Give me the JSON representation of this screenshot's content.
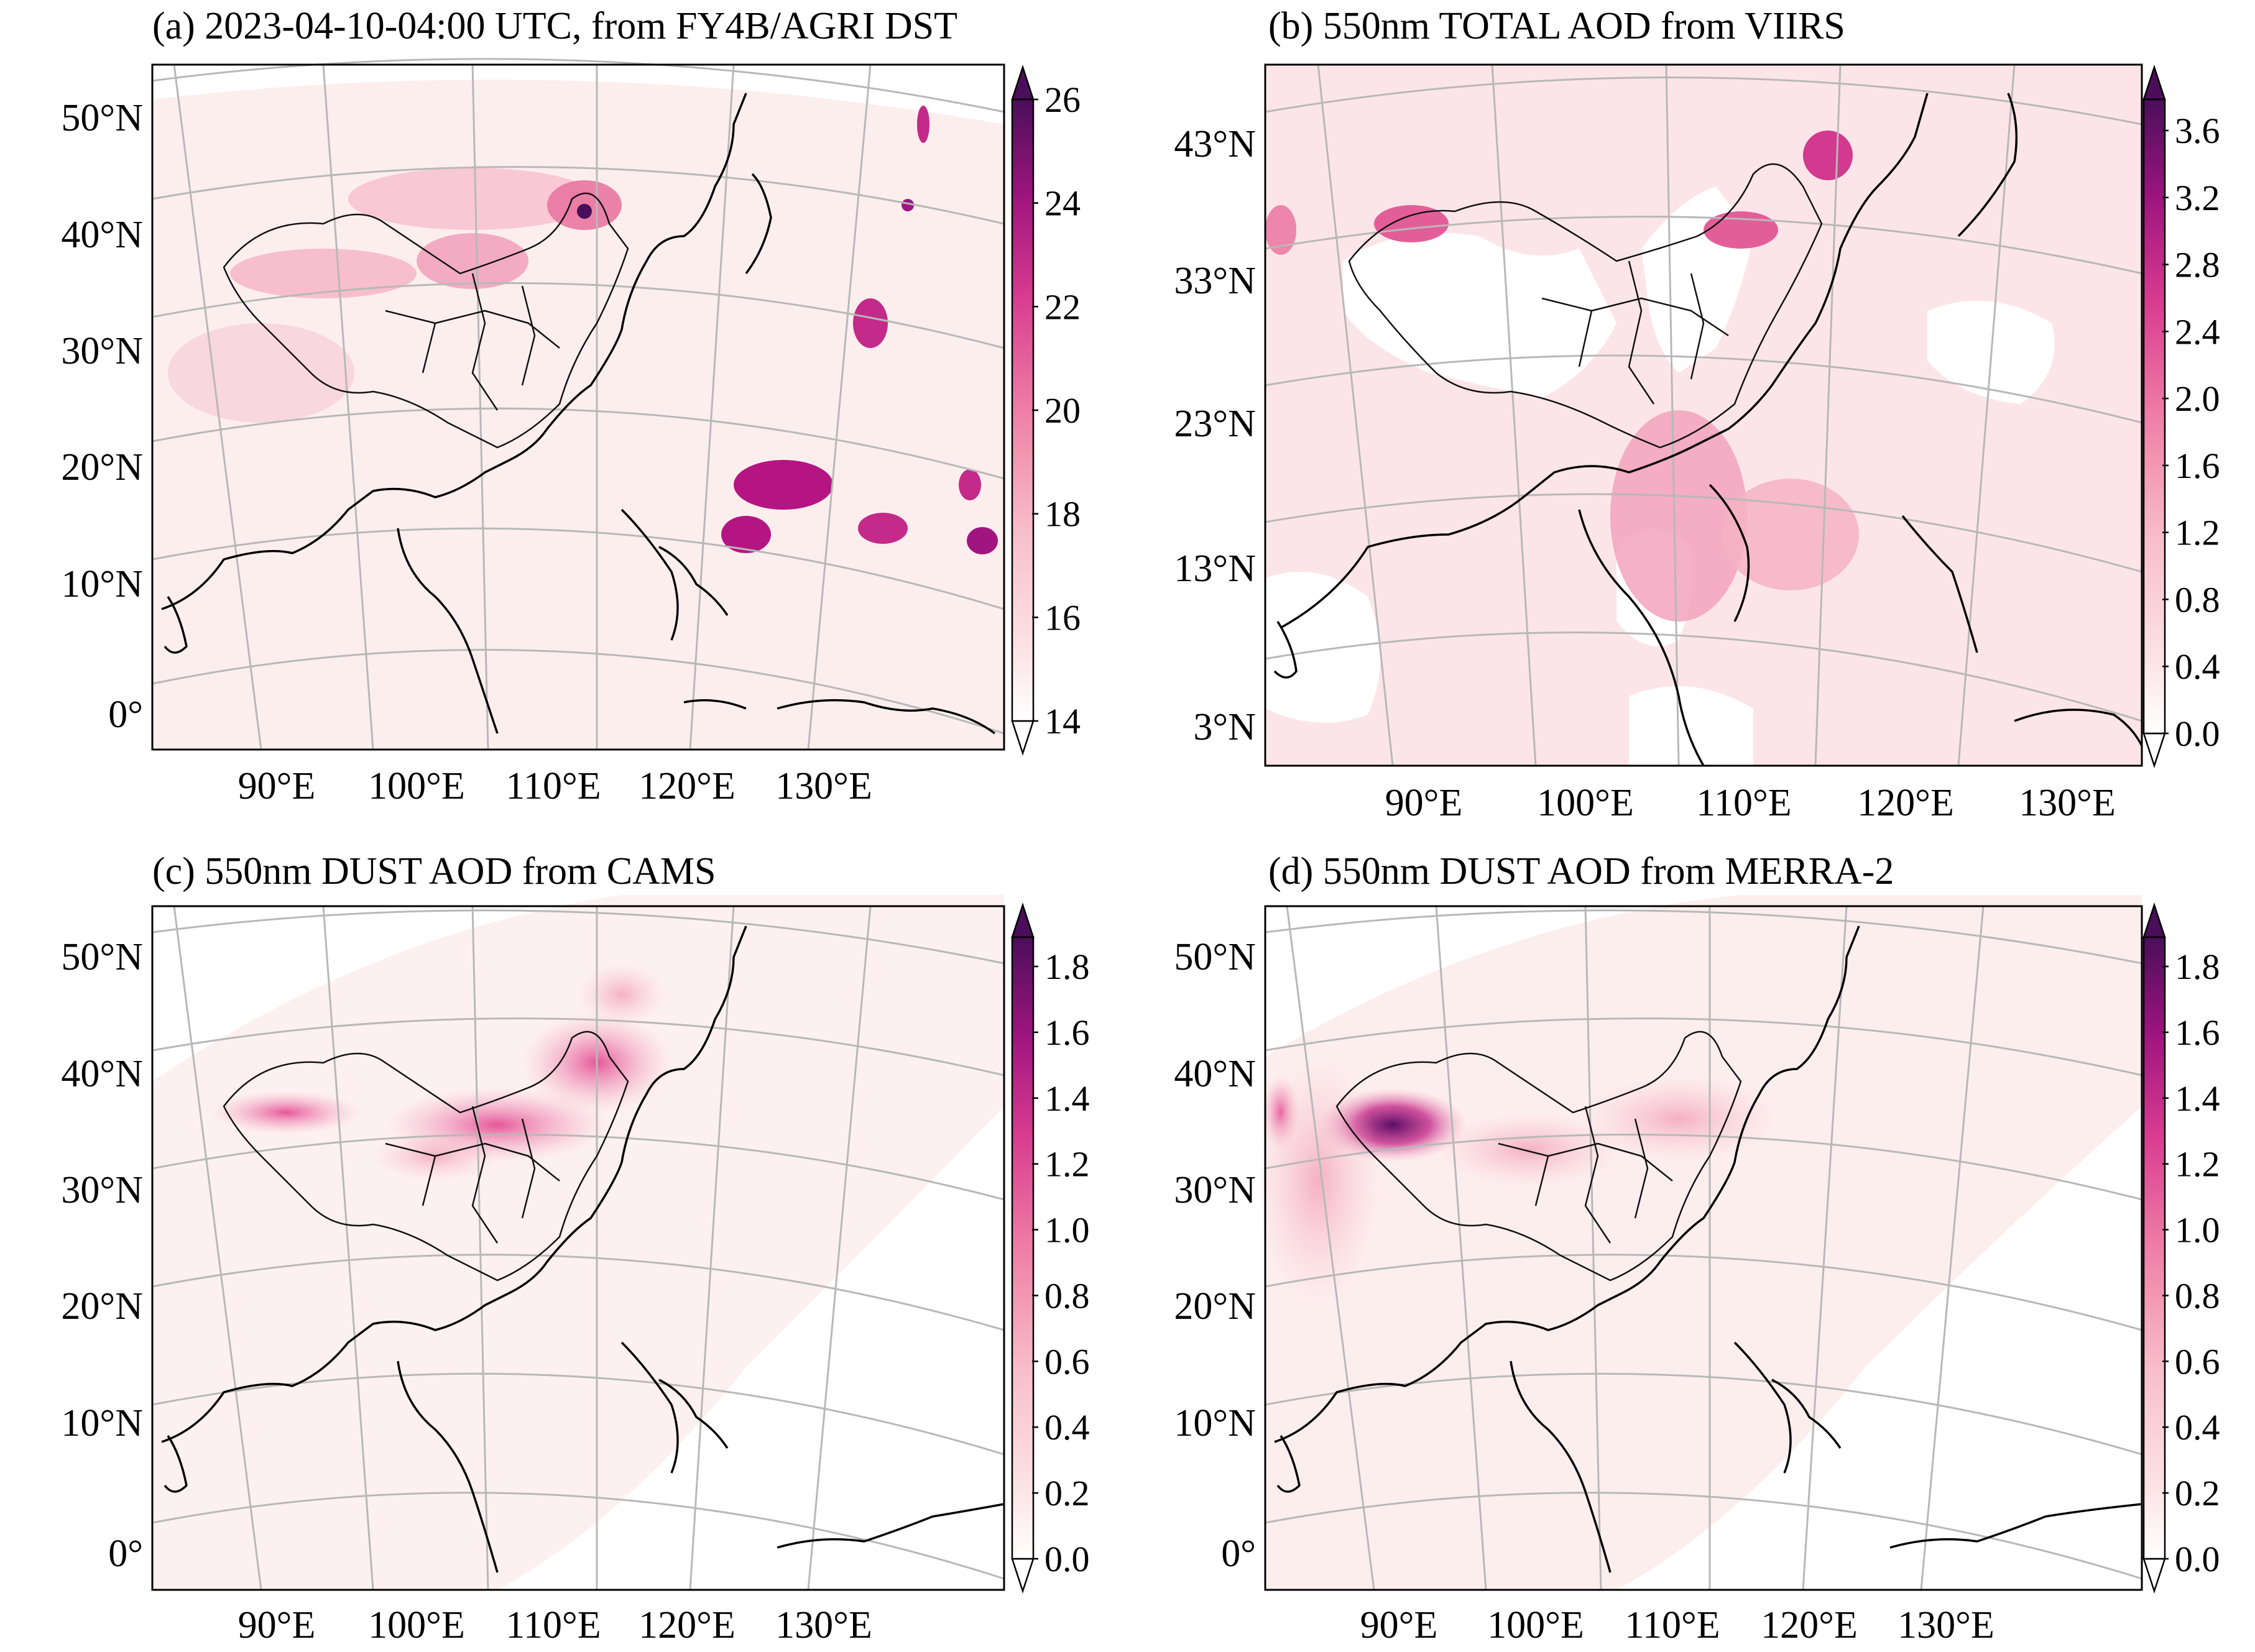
{
  "panels": [
    {
      "id": "a",
      "title": "(a) 2023-04-10-04:00 UTC, from FY4B/AGRI DST",
      "lat_labels": [
        "50°N",
        "40°N",
        "30°N",
        "20°N",
        "10°N",
        "0°"
      ],
      "lon_labels": [
        "90°E",
        "100°E",
        "110°E",
        "120°E",
        "130°E"
      ],
      "colorbar": {
        "ticks": [
          "14",
          "16",
          "18",
          "20",
          "22",
          "24",
          "26"
        ],
        "min": 14,
        "max": 26
      },
      "variable": "FY4B/AGRI DST"
    },
    {
      "id": "b",
      "title": "(b) 550nm TOTAL AOD from VIIRS",
      "lat_labels": [
        "43°N",
        "33°N",
        "23°N",
        "13°N",
        "3°N"
      ],
      "lon_labels": [
        "90°E",
        "100°E",
        "110°E",
        "120°E",
        "130°E"
      ],
      "colorbar": {
        "ticks": [
          "0.0",
          "0.4",
          "0.8",
          "1.2",
          "1.6",
          "2.0",
          "2.4",
          "2.8",
          "3.2",
          "3.6"
        ],
        "min": 0.0,
        "max": 3.6
      },
      "variable": "550nm TOTAL AOD"
    },
    {
      "id": "c",
      "title": "(c) 550nm DUST AOD from CAMS",
      "lat_labels": [
        "50°N",
        "40°N",
        "30°N",
        "20°N",
        "10°N",
        "0°"
      ],
      "lon_labels": [
        "90°E",
        "100°E",
        "110°E",
        "120°E",
        "130°E"
      ],
      "colorbar": {
        "ticks": [
          "0.0",
          "0.2",
          "0.4",
          "0.6",
          "0.8",
          "1.0",
          "1.2",
          "1.4",
          "1.6",
          "1.8"
        ],
        "min": 0.0,
        "max": 1.8
      },
      "variable": "550nm DUST AOD"
    },
    {
      "id": "d",
      "title": "(d) 550nm DUST AOD from MERRA-2",
      "lat_labels": [
        "50°N",
        "40°N",
        "30°N",
        "20°N",
        "10°N",
        "0°"
      ],
      "lon_labels": [
        "90°E",
        "100°E",
        "110°E",
        "120°E",
        "130°E"
      ],
      "colorbar": {
        "ticks": [
          "0.0",
          "0.2",
          "0.4",
          "0.6",
          "0.8",
          "1.0",
          "1.2",
          "1.4",
          "1.6",
          "1.8"
        ],
        "min": 0.0,
        "max": 1.8
      },
      "variable": "550nm DUST AOD"
    }
  ],
  "colors": {
    "low": "#fdeeee",
    "light_pink": "#f8c7cf",
    "pink": "#ee7fa6",
    "magenta": "#c2238a",
    "dark_purple": "#4a0e5a"
  }
}
